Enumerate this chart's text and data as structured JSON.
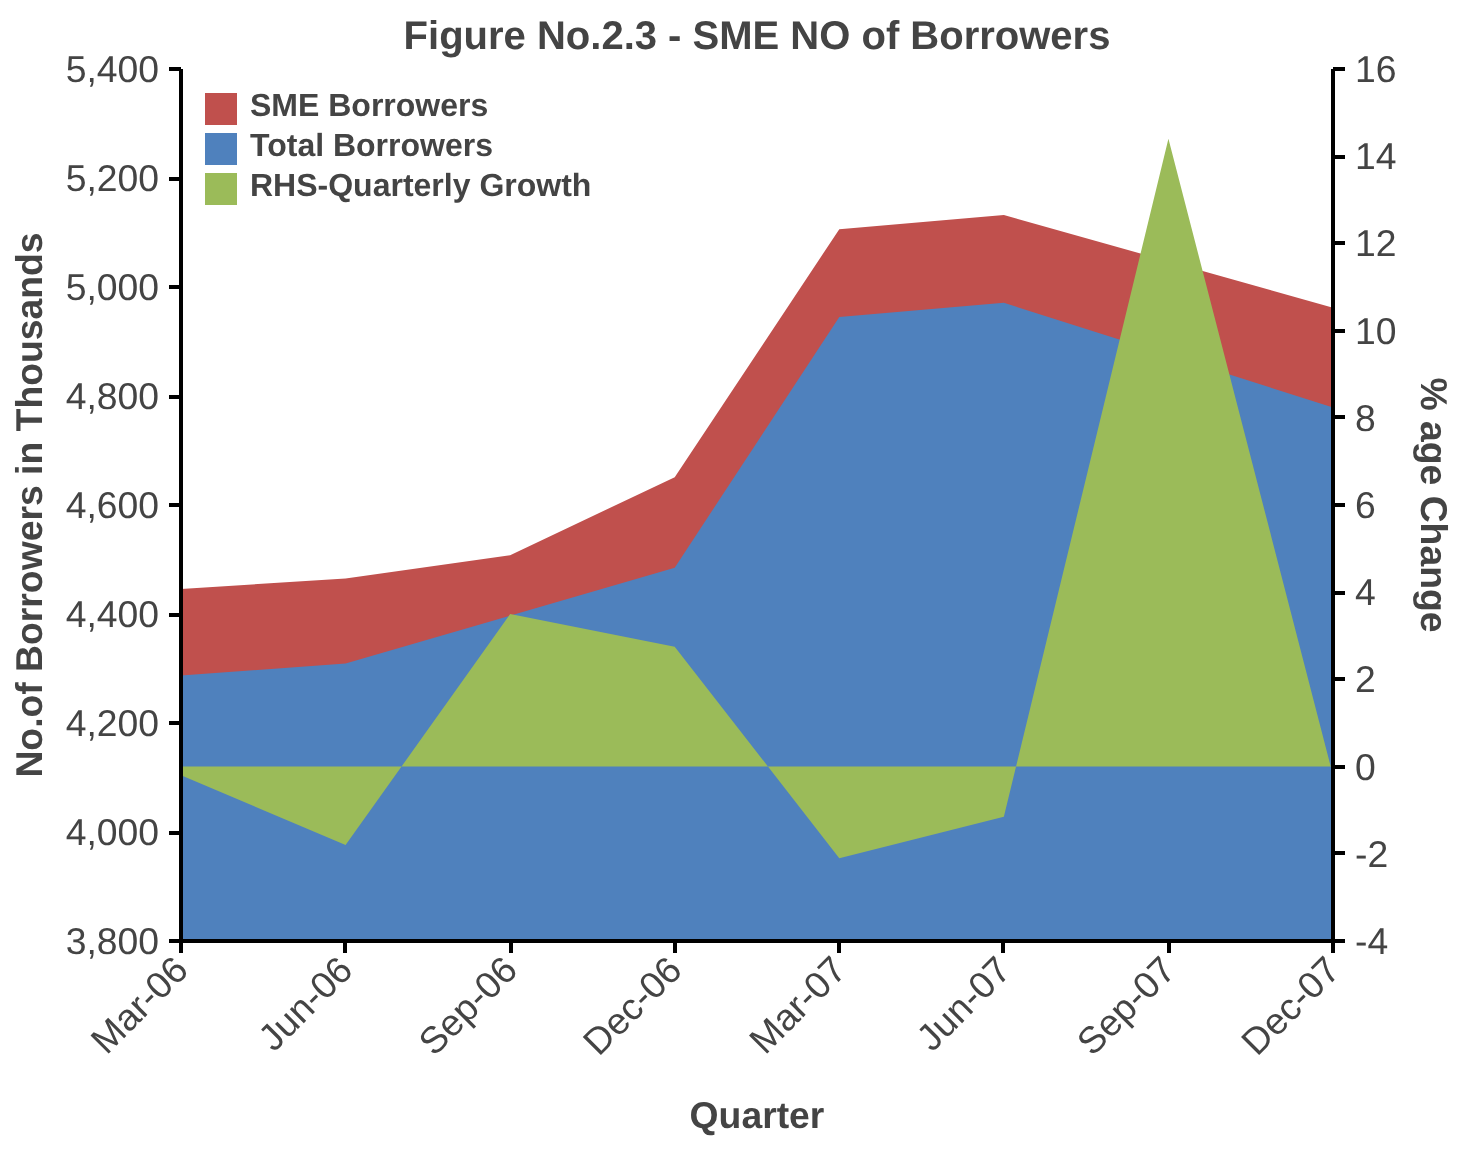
{
  "chart_data": {
    "type": "area",
    "title": "Figure No.2.3 - SME NO of Borrowers",
    "xlabel": "Quarter",
    "ylabel": "No.of Borrowers in Thousands",
    "y2label": "% age Change",
    "categories": [
      "Mar-06",
      "Jun-06",
      "Sep-06",
      "Dec-06",
      "Mar-07",
      "Jun-07",
      "Sep-07",
      "Dec-07"
    ],
    "series": [
      {
        "name": "SME Borrowers",
        "color": "#c0504d",
        "values": [
          4446,
          4465,
          4508,
          4651,
          5106,
          5132,
          null,
          4962
        ]
      },
      {
        "name": "Total Borrowers",
        "color": "#4f81bd",
        "values": [
          4287,
          4309,
          null,
          4485,
          4945,
          4971,
          null,
          4779
        ]
      },
      {
        "name": "RHS-Quarterly Growth",
        "color": "#9bbb59",
        "axis": "y2",
        "values": [
          -0.2,
          -1.8,
          3.5,
          2.75,
          -2.1,
          -1.15,
          14.4,
          -0.2
        ]
      }
    ],
    "ylim": [
      3800,
      5400
    ],
    "yticks": [
      {
        "value": 3800,
        "label": "3,800"
      },
      {
        "value": 4000,
        "label": "4,000"
      },
      {
        "value": 4200,
        "label": "4,200"
      },
      {
        "value": 4400,
        "label": "4,400"
      },
      {
        "value": 4600,
        "label": "4,600"
      },
      {
        "value": 4800,
        "label": "4,800"
      },
      {
        "value": 5000,
        "label": "5,000"
      },
      {
        "value": 5200,
        "label": "5,200"
      },
      {
        "value": 5400,
        "label": "5,400"
      }
    ],
    "y2lim": [
      -4,
      16
    ],
    "y2ticks": [
      -4,
      -2,
      0,
      2,
      4,
      6,
      8,
      10,
      12,
      14,
      16
    ],
    "legend": "top left",
    "grid": false
  }
}
